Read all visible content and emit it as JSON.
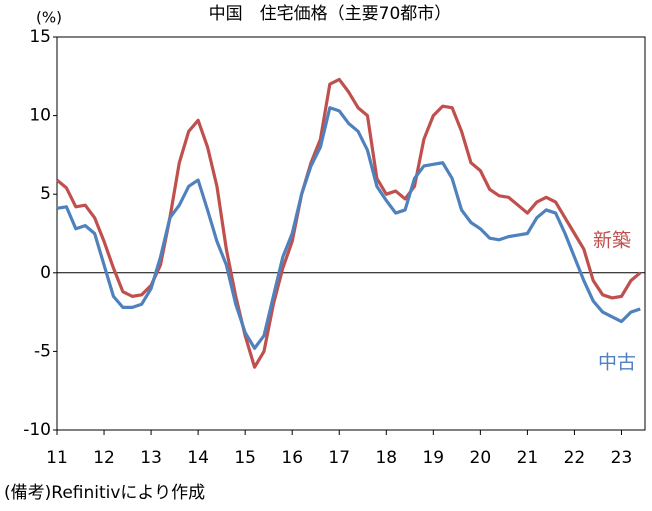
{
  "chart_data": {
    "type": "line",
    "title": "中国　住宅価格（主要70都市）",
    "y_unit": "(%)",
    "note": "(備考)Refinitivにより作成",
    "x": [
      11,
      11.2,
      11.4,
      11.6,
      11.8,
      12,
      12.2,
      12.4,
      12.6,
      12.8,
      13,
      13.2,
      13.4,
      13.6,
      13.8,
      14,
      14.2,
      14.4,
      14.6,
      14.8,
      15,
      15.2,
      15.4,
      15.6,
      15.8,
      16,
      16.2,
      16.4,
      16.6,
      16.8,
      17,
      17.2,
      17.4,
      17.6,
      17.8,
      18,
      18.2,
      18.4,
      18.6,
      18.8,
      19,
      19.2,
      19.4,
      19.6,
      19.8,
      20,
      20.2,
      20.4,
      20.6,
      20.8,
      21,
      21.2,
      21.4,
      21.6,
      21.8,
      22,
      22.2,
      22.4,
      22.6,
      22.8,
      23,
      23.2,
      23.4
    ],
    "series": [
      {
        "name": "新築",
        "color": "#c0504d",
        "values": [
          5.9,
          5.4,
          4.2,
          4.3,
          3.5,
          2.0,
          0.3,
          -1.2,
          -1.5,
          -1.4,
          -0.8,
          0.5,
          3.5,
          7.0,
          9.0,
          9.7,
          8.0,
          5.5,
          1.5,
          -1.5,
          -4.0,
          -6.0,
          -5.0,
          -2.0,
          0.3,
          2.0,
          5.0,
          7.0,
          8.5,
          12.0,
          12.3,
          11.5,
          10.5,
          10.0,
          6.0,
          5.0,
          5.2,
          4.7,
          5.5,
          8.5,
          10.0,
          10.6,
          10.5,
          9.0,
          7.0,
          6.5,
          5.3,
          4.9,
          4.8,
          4.3,
          3.8,
          4.5,
          4.8,
          4.5,
          3.5,
          2.5,
          1.5,
          -0.5,
          -1.4,
          -1.6,
          -1.5,
          -0.5,
          0.0
        ]
      },
      {
        "name": "中古",
        "color": "#4f81bd",
        "values": [
          4.1,
          4.2,
          2.8,
          3.0,
          2.5,
          0.5,
          -1.5,
          -2.2,
          -2.2,
          -2.0,
          -1.0,
          1.0,
          3.5,
          4.3,
          5.5,
          5.9,
          4.0,
          2.0,
          0.5,
          -2.0,
          -3.8,
          -4.8,
          -4.0,
          -1.5,
          1.0,
          2.5,
          5.0,
          6.8,
          8.0,
          10.5,
          10.3,
          9.5,
          9.0,
          7.8,
          5.5,
          4.6,
          3.8,
          4.0,
          6.0,
          6.8,
          6.9,
          7.0,
          6.0,
          4.0,
          3.2,
          2.8,
          2.2,
          2.1,
          2.3,
          2.4,
          2.5,
          3.5,
          4.0,
          3.8,
          2.5,
          1.0,
          -0.5,
          -1.8,
          -2.5,
          -2.8,
          -3.1,
          -2.5,
          -2.3
        ]
      }
    ],
    "xlim": [
      11,
      23.5
    ],
    "xticks": [
      11,
      12,
      13,
      14,
      15,
      16,
      17,
      18,
      19,
      20,
      21,
      22,
      23
    ],
    "ylim": [
      -10,
      15
    ],
    "yticks": [
      15,
      10,
      5,
      0,
      -5,
      -10
    ],
    "zero_line": true,
    "legend": "direct"
  }
}
